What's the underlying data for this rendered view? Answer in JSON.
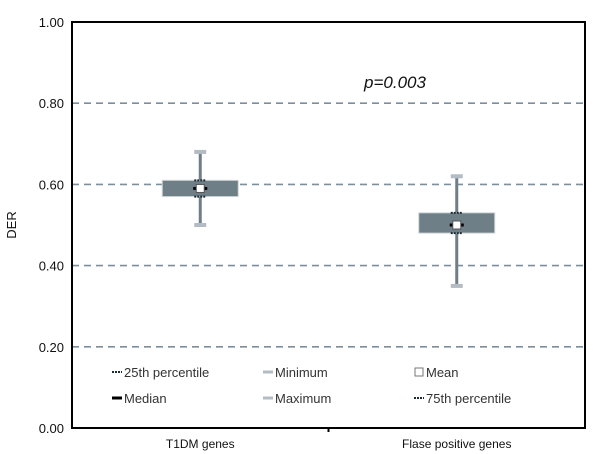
{
  "chart_data": {
    "type": "box",
    "ylabel": "DER",
    "ylim": [
      0,
      1
    ],
    "yticks": [
      "0.00",
      "0.20",
      "0.40",
      "0.60",
      "0.80",
      "1.00"
    ],
    "grid_y": [
      0.2,
      0.4,
      0.6,
      0.8
    ],
    "annotation": "p=0.003",
    "categories": [
      "T1DM genes",
      "Flase positive genes"
    ],
    "boxes": [
      {
        "category": "T1DM genes",
        "min": 0.5,
        "q1": 0.57,
        "median": 0.59,
        "mean": 0.59,
        "q3": 0.61,
        "max": 0.68
      },
      {
        "category": "Flase positive genes",
        "min": 0.35,
        "q1": 0.48,
        "median": 0.5,
        "mean": 0.5,
        "q3": 0.53,
        "max": 0.62
      }
    ],
    "legend": [
      "25th percentile",
      "Minimum",
      "Mean",
      "Median",
      "Maximum",
      "75th percentile"
    ],
    "legend_position": "bottom-inside",
    "colors": {
      "box_fill": "#6f7f88",
      "whisker": "#6f7f88",
      "cap": "#b3bcc2",
      "grid": "#7b8f9d",
      "median": "#000000",
      "frame": "#000000"
    }
  }
}
